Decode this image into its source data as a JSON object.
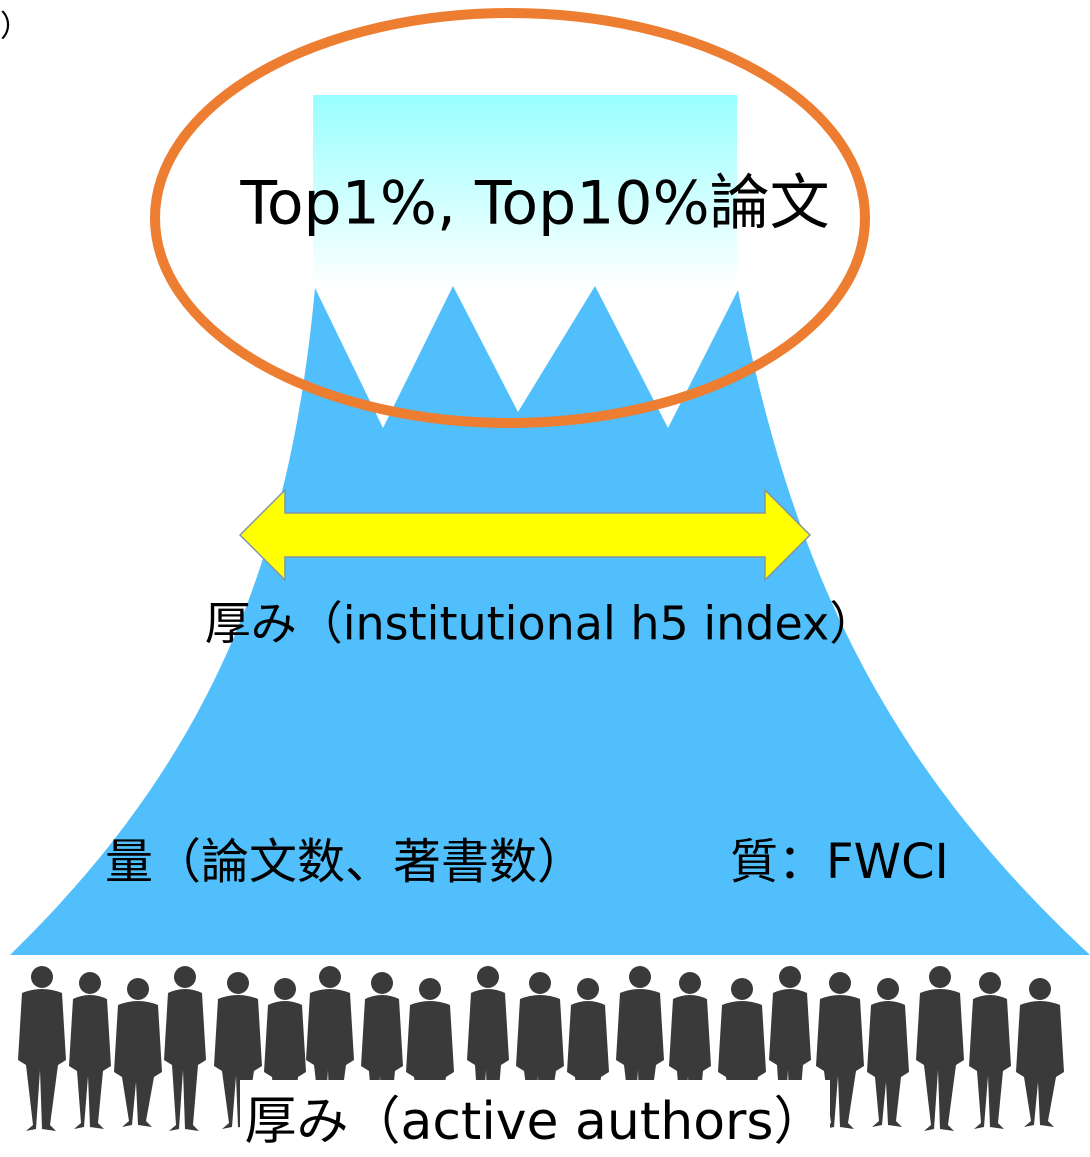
{
  "corner_mark": "）",
  "peak_label": "Top1%, Top10%論文",
  "width_label": "厚み（institutional h5 index）",
  "quantity_label": "量（論文数、著書数）",
  "quality_label": "質：FWCI",
  "base_label": "厚み（active authors）"
}
